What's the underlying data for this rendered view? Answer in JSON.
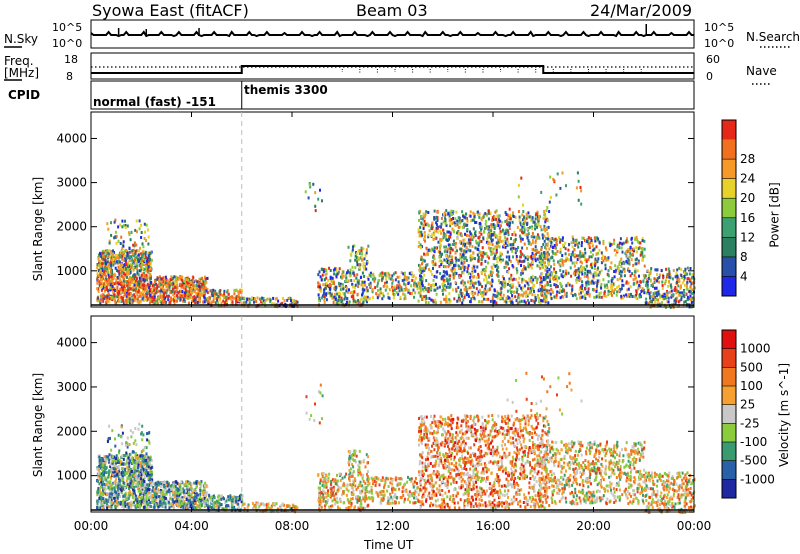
{
  "header": {
    "station": "Syowa East (fitACF)",
    "beam": "Beam 03",
    "date": "24/Mar/2009"
  },
  "side_labels": {
    "nsky": "N.Sky",
    "freq": "Freq.",
    "mhz": "[MHz]",
    "cpid": "CPID",
    "nsearch": "N.Search",
    "nave": "Nave"
  },
  "scales": {
    "nsky_top": "10^5",
    "nsky_bottom": "10^0",
    "freq_top": "18",
    "freq_bottom": "8",
    "nave_top": "60",
    "nave_bottom": "0"
  },
  "cpid": {
    "mode1": "normal (fast) -151",
    "mode2": "themis 3300"
  },
  "colors": {
    "power": [
      "#1e28e6",
      "#2850a8",
      "#2a8060",
      "#3ca070",
      "#8ccc3c",
      "#e6d22a",
      "#f59a28",
      "#f07020",
      "#e62818"
    ],
    "velocity": [
      "#1e28a0",
      "#2a60a8",
      "#3a9a70",
      "#8acc3c",
      "#c8c8c8",
      "#f5a030",
      "#f07820",
      "#e84018",
      "#e01010"
    ]
  },
  "chart_data": [
    {
      "type": "heatmap",
      "title": "",
      "xlabel": "Time UT",
      "ylabel": "Slant Range [km]",
      "x_ticks": [
        "00:00",
        "04:00",
        "08:00",
        "12:00",
        "16:00",
        "20:00",
        "00:00"
      ],
      "x_range_hours": [
        0,
        24
      ],
      "y_ticks": [
        "1000",
        "2000",
        "3000",
        "4000"
      ],
      "ylim": [
        180,
        4600
      ],
      "colorbar": {
        "label": "Power [dB]",
        "ticks": [
          "4",
          "8",
          "12",
          "16",
          "20",
          "24",
          "28"
        ],
        "range": [
          0,
          30
        ]
      }
    },
    {
      "type": "heatmap",
      "title": "",
      "xlabel": "Time UT",
      "ylabel": "Slant Range [km]",
      "x_ticks": [
        "00:00",
        "04:00",
        "08:00",
        "12:00",
        "16:00",
        "20:00",
        "00:00"
      ],
      "x_range_hours": [
        0,
        24
      ],
      "y_ticks": [
        "1000",
        "2000",
        "3000",
        "4000"
      ],
      "ylim": [
        180,
        4600
      ],
      "colorbar": {
        "label": "Velocity [m s^-1]",
        "ticks": [
          "1000",
          "500",
          "100",
          "25",
          "-25",
          "-100",
          "-500",
          "-1000"
        ]
      }
    }
  ]
}
